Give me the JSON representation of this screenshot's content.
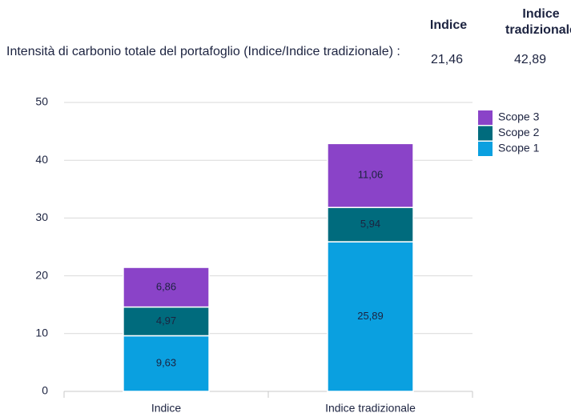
{
  "header": {
    "columns": [
      "Indice",
      "Indice tradizionale"
    ],
    "row_label": "Intensità di carbonio totale del portafoglio (Indice/Indice tradizionale) :",
    "row_values": [
      "21,46",
      "42,89"
    ]
  },
  "chart_data": {
    "type": "stacked_bar",
    "categories": [
      "Indice",
      "Indice tradizionale"
    ],
    "series": [
      {
        "name": "Scope 1",
        "color": "#0aa0e0",
        "values": [
          9.63,
          25.89
        ],
        "value_labels": [
          "9,63",
          "25,89"
        ]
      },
      {
        "name": "Scope 2",
        "color": "#006b7d",
        "values": [
          4.97,
          5.94
        ],
        "value_labels": [
          "4,97",
          "5,94"
        ]
      },
      {
        "name": "Scope 3",
        "color": "#8a43c8",
        "values": [
          6.86,
          11.06
        ],
        "value_labels": [
          "6,86",
          "11,06"
        ]
      }
    ],
    "ylim": [
      0,
      50
    ],
    "yticks": [
      0,
      10,
      20,
      30,
      40,
      50
    ],
    "grid": true,
    "legend": "top-right"
  }
}
